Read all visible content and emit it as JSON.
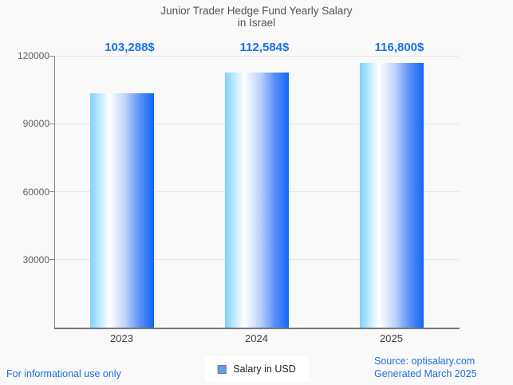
{
  "title": {
    "line1": "Junior Trader Hedge Fund Yearly Salary",
    "line2": "in Israel"
  },
  "chart_data": {
    "type": "bar",
    "title": "Junior Trader Hedge Fund Yearly Salary in Israel",
    "categories": [
      "2023",
      "2024",
      "2025"
    ],
    "series": [
      {
        "name": "Salary in USD",
        "values": [
          103288,
          112584,
          116800
        ]
      }
    ],
    "values": [
      103288,
      112584,
      116800
    ],
    "value_labels": [
      "103,288$",
      "112,584$",
      "116,800$"
    ],
    "xlabel": "",
    "ylabel": "",
    "y_ticks": [
      30000,
      60000,
      90000,
      120000
    ],
    "y_tick_labels": [
      "30000",
      "60000",
      "90000",
      "120000"
    ],
    "ylim": [
      0,
      120000
    ],
    "grid": true,
    "legend": {
      "position": "bottom",
      "label": "Salary in USD",
      "swatch_color": "#5b9ff2"
    },
    "bar_gradient": [
      "#7ed2fc",
      "#ffffff",
      "#1266f5"
    ]
  },
  "footer": {
    "disclaimer": "For informational use only",
    "source_line1": "Source: optisalary.com",
    "source_line2": "Generated March 2025"
  },
  "colors": {
    "background": "#f9f9f9",
    "accent_blue": "#1d6fdc",
    "annotation_blue": "#1a73e8",
    "title_text": "#545454",
    "y_axis_text": "#616161",
    "x_axis_text": "#424242",
    "grid_line": "#e6e6e6",
    "axis_line": "#7a7a7a",
    "legend_text": "#1f1f1f",
    "legend_box_bg": "#ffffff"
  }
}
